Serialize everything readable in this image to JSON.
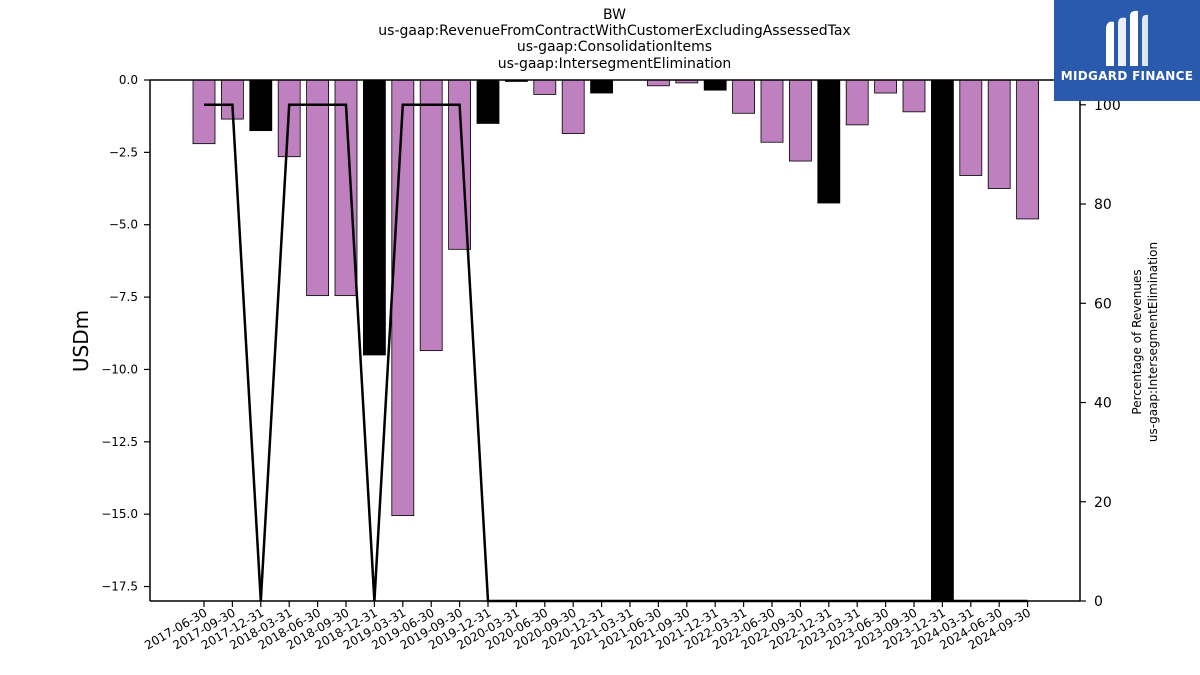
{
  "title_lines": [
    "BW",
    "us-gaap:RevenueFromContractWithCustomerExcludingAssessedTax",
    "us-gaap:ConsolidationItems",
    "us-gaap:IntersegmentElimination"
  ],
  "logo": {
    "text": "MIDGARD FINANCE",
    "icon": "midgard-logo-icon",
    "background": "#2a5aad"
  },
  "colors": {
    "positive_bar": "#bf80bf",
    "negative_bar": "#000000",
    "line": "#000000"
  },
  "chart_data": {
    "type": "bar",
    "categories": [
      "2017-06-30",
      "2017-09-30",
      "2017-12-31",
      "2018-03-31",
      "2018-06-30",
      "2018-09-30",
      "2018-12-31",
      "2019-03-31",
      "2019-06-30",
      "2019-09-30",
      "2019-12-31",
      "2020-03-31",
      "2020-06-30",
      "2020-09-30",
      "2020-12-31",
      "2021-03-31",
      "2021-06-30",
      "2021-09-30",
      "2021-12-31",
      "2022-03-31",
      "2022-06-30",
      "2022-09-30",
      "2022-12-31",
      "2023-03-31",
      "2023-06-30",
      "2023-09-30",
      "2023-12-31",
      "2024-03-31",
      "2024-06-30",
      "2024-09-30"
    ],
    "series": [
      {
        "axis": "left",
        "values": [
          -2.2,
          -1.35,
          -1.75,
          -2.65,
          -7.45,
          -7.45,
          -9.5,
          -15.05,
          -9.35,
          -5.85,
          -1.5,
          -0.05,
          -0.5,
          -1.85,
          -0.45,
          null,
          -0.2,
          -0.1,
          -0.35,
          -1.15,
          -2.15,
          -2.8,
          -4.25,
          -1.55,
          -0.45,
          -1.1,
          -18.0,
          -3.3,
          -3.75,
          -4.8
        ],
        "bar_colors": [
          "#bf80bf",
          "#bf80bf",
          "#000000",
          "#bf80bf",
          "#bf80bf",
          "#bf80bf",
          "#000000",
          "#bf80bf",
          "#bf80bf",
          "#bf80bf",
          "#000000",
          "#000000",
          "#bf80bf",
          "#bf80bf",
          "#000000",
          null,
          "#bf80bf",
          "#bf80bf",
          "#000000",
          "#bf80bf",
          "#bf80bf",
          "#bf80bf",
          "#000000",
          "#bf80bf",
          "#bf80bf",
          "#bf80bf",
          "#000000",
          "#bf80bf",
          "#bf80bf",
          "#bf80bf"
        ]
      },
      {
        "axis": "right",
        "type": "line",
        "values": [
          100,
          100,
          0,
          100,
          100,
          100,
          0,
          100,
          100,
          100,
          0,
          0,
          0,
          0,
          0,
          0,
          0,
          0,
          0,
          0,
          0,
          0,
          0,
          0,
          0,
          0,
          0,
          0,
          0,
          0
        ]
      }
    ],
    "ylabel": "USDm",
    "y2label": [
      "Percentage of Revenues",
      "us-gaap:IntersegmentElimination"
    ],
    "ylim": [
      -18.0,
      0.0
    ],
    "y2lim": [
      0,
      105
    ],
    "yticks": [
      "0.0",
      "−2.5",
      "−5.0",
      "−7.5",
      "−10.0",
      "−12.5",
      "−15.0",
      "−17.5"
    ],
    "y2ticks": [
      "0",
      "20",
      "40",
      "60",
      "80",
      "100"
    ],
    "grid": false
  }
}
